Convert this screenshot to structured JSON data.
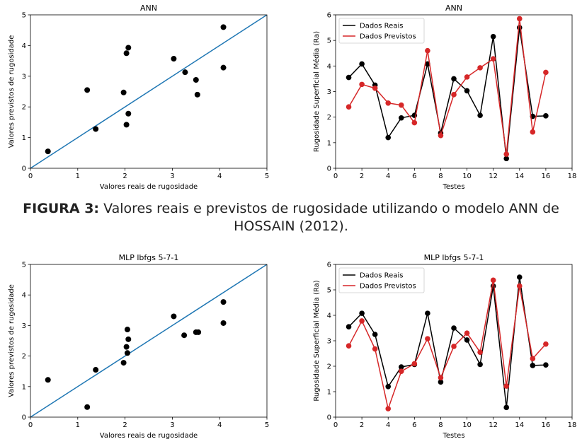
{
  "figure_caption": {
    "label": "FIGURA 3:",
    "text": "Valores reais e previstos de rugosidade utilizando o modelo ANN de HOSSAIN (2012)."
  },
  "colors": {
    "line": "#1f77b4",
    "real": "#000000",
    "predicted": "#d62728"
  },
  "chart_data": [
    {
      "type": "scatter",
      "title": "ANN",
      "xlabel": "Valores reais de rugosidade",
      "ylabel": "Valores previstos de rugosidade",
      "xlim": [
        0,
        5
      ],
      "ylim": [
        0,
        5
      ],
      "xticks": [
        0,
        1,
        2,
        3,
        4,
        5
      ],
      "yticks": [
        0,
        1,
        2,
        3,
        4,
        5
      ],
      "identity_line": true,
      "points": [
        [
          0.37,
          0.55
        ],
        [
          1.2,
          2.55
        ],
        [
          1.38,
          1.28
        ],
        [
          1.97,
          2.47
        ],
        [
          2.03,
          3.75
        ],
        [
          2.07,
          3.93
        ],
        [
          2.03,
          1.42
        ],
        [
          2.07,
          1.78
        ],
        [
          3.03,
          3.57
        ],
        [
          3.27,
          3.13
        ],
        [
          3.5,
          2.88
        ],
        [
          3.53,
          2.4
        ],
        [
          4.08,
          4.6
        ],
        [
          4.08,
          3.28
        ]
      ]
    },
    {
      "type": "line",
      "title": "ANN",
      "xlabel": "Testes",
      "ylabel": "Rugosidade Superficial Média (Ra)",
      "xlim": [
        0,
        18
      ],
      "ylim": [
        0,
        6
      ],
      "xticks": [
        0,
        2,
        4,
        6,
        8,
        10,
        12,
        14,
        16,
        18
      ],
      "yticks": [
        0,
        1,
        2,
        3,
        4,
        5,
        6
      ],
      "legend": "top-left",
      "x": [
        1,
        2,
        3,
        4,
        5,
        6,
        7,
        8,
        9,
        10,
        11,
        12,
        13,
        14,
        15,
        16
      ],
      "series": [
        {
          "name": "Dados Reais",
          "values": [
            3.55,
            4.08,
            3.25,
            1.2,
            1.97,
            2.07,
            4.08,
            1.38,
            3.5,
            3.03,
            2.07,
            5.15,
            0.38,
            5.5,
            2.03,
            2.05
          ]
        },
        {
          "name": "Dados Previstos",
          "values": [
            2.4,
            3.28,
            3.13,
            2.55,
            2.47,
            1.78,
            4.6,
            1.28,
            2.88,
            3.57,
            3.93,
            4.28,
            0.55,
            5.85,
            1.42,
            3.75
          ]
        }
      ]
    },
    {
      "type": "scatter",
      "title": "MLP lbfgs 5-7-1",
      "xlabel": "Valores reais de rugosidade",
      "ylabel": "Valores previstos de rugosidade",
      "xlim": [
        0,
        5
      ],
      "ylim": [
        0,
        5
      ],
      "xticks": [
        0,
        1,
        2,
        3,
        4,
        5
      ],
      "yticks": [
        0,
        1,
        2,
        3,
        4,
        5
      ],
      "identity_line": true,
      "points": [
        [
          0.37,
          1.22
        ],
        [
          1.2,
          0.33
        ],
        [
          1.38,
          1.55
        ],
        [
          1.97,
          1.78
        ],
        [
          2.03,
          2.3
        ],
        [
          2.05,
          2.87
        ],
        [
          2.05,
          2.1
        ],
        [
          2.07,
          2.55
        ],
        [
          3.03,
          3.3
        ],
        [
          3.25,
          2.68
        ],
        [
          3.5,
          2.78
        ],
        [
          3.55,
          2.78
        ],
        [
          4.08,
          3.77
        ],
        [
          4.08,
          3.08
        ]
      ]
    },
    {
      "type": "line",
      "title": "MLP lbfgs 5-7-1",
      "xlabel": "Testes",
      "ylabel": "Rugosidade Superficial Média (Ra)",
      "xlim": [
        0,
        18
      ],
      "ylim": [
        0,
        6
      ],
      "xticks": [
        0,
        2,
        4,
        6,
        8,
        10,
        12,
        14,
        16,
        18
      ],
      "yticks": [
        0,
        1,
        2,
        3,
        4,
        5,
        6
      ],
      "legend": "top-left",
      "x": [
        1,
        2,
        3,
        4,
        5,
        6,
        7,
        8,
        9,
        10,
        11,
        12,
        13,
        14,
        15,
        16
      ],
      "series": [
        {
          "name": "Dados Reais",
          "values": [
            3.55,
            4.08,
            3.25,
            1.2,
            1.97,
            2.07,
            4.08,
            1.38,
            3.5,
            3.03,
            2.07,
            5.15,
            0.38,
            5.5,
            2.03,
            2.05
          ]
        },
        {
          "name": "Dados Previstos",
          "values": [
            2.8,
            3.78,
            2.68,
            0.33,
            1.8,
            2.1,
            3.08,
            1.55,
            2.78,
            3.3,
            2.55,
            5.38,
            1.22,
            5.15,
            2.3,
            2.87
          ]
        }
      ]
    }
  ]
}
